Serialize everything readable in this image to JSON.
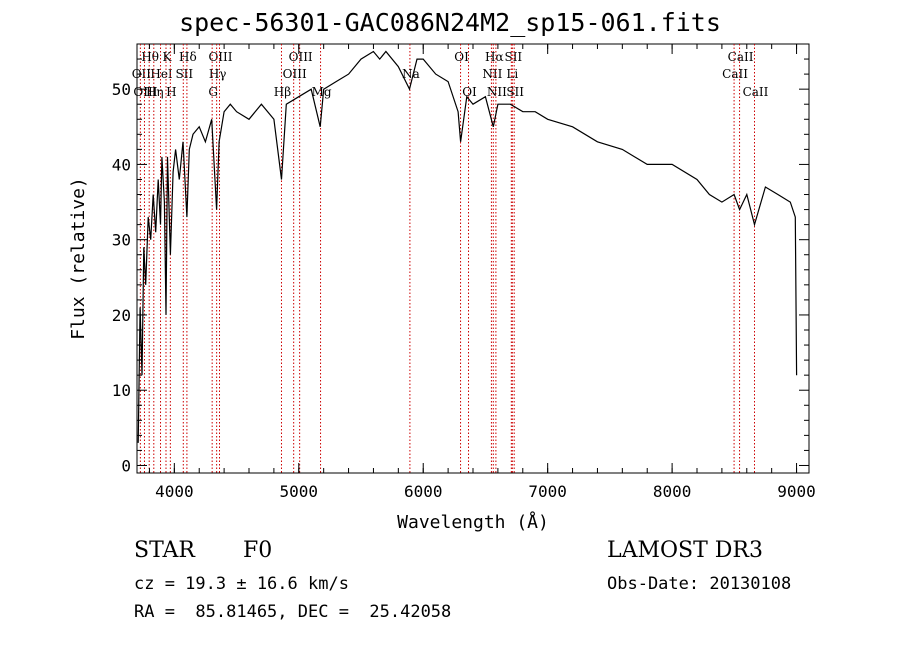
{
  "chart_data": {
    "type": "line",
    "title": "spec-56301-GAC086N24M2_sp15-061.fits",
    "xlabel": "Wavelength (Å)",
    "ylabel": "Flux (relative)",
    "xlim": [
      3700,
      9100
    ],
    "ylim": [
      -1,
      56
    ],
    "xticks": [
      4000,
      5000,
      6000,
      7000,
      8000,
      9000
    ],
    "yticks": [
      0,
      10,
      20,
      30,
      40,
      50
    ],
    "series": [
      {
        "name": "spectrum",
        "x": [
          3710,
          3725,
          3740,
          3755,
          3770,
          3790,
          3810,
          3830,
          3850,
          3870,
          3889,
          3900,
          3920,
          3933,
          3945,
          3968,
          3990,
          4010,
          4040,
          4070,
          4101,
          4120,
          4150,
          4200,
          4250,
          4300,
          4340,
          4360,
          4400,
          4450,
          4500,
          4600,
          4700,
          4800,
          4861,
          4900,
          5000,
          5100,
          5172,
          5200,
          5300,
          5400,
          5500,
          5600,
          5650,
          5700,
          5800,
          5890,
          5950,
          6000,
          6100,
          6200,
          6280,
          6300,
          6350,
          6400,
          6500,
          6563,
          6600,
          6700,
          6800,
          6900,
          7000,
          7200,
          7400,
          7600,
          7800,
          8000,
          8200,
          8300,
          8400,
          8498,
          8542,
          8600,
          8662,
          8750,
          8850,
          8950,
          8990,
          9000
        ],
        "values": [
          3,
          21,
          12,
          29,
          24,
          33,
          30,
          36,
          31,
          38,
          32,
          41,
          35,
          20,
          41,
          28,
          39,
          42,
          38,
          43,
          33,
          42,
          44,
          45,
          43,
          46,
          34,
          43,
          47,
          48,
          47,
          46,
          48,
          46,
          38,
          48,
          49,
          50,
          45,
          50,
          51,
          52,
          54,
          55,
          54,
          55,
          53,
          50,
          54,
          54,
          52,
          51,
          47,
          43,
          49,
          48,
          49,
          45,
          48,
          48,
          47,
          47,
          46,
          45,
          43,
          42,
          40,
          40,
          38,
          36,
          35,
          36,
          34,
          36,
          32,
          37,
          36,
          35,
          33,
          12
        ]
      }
    ],
    "lines": [
      {
        "label": "Hθ",
        "wave": 3798,
        "row": 1
      },
      {
        "label": "OII",
        "wave": 3727,
        "row": 2
      },
      {
        "label": "OIII",
        "wave": 3760,
        "row": 3
      },
      {
        "label": "K",
        "wave": 3933,
        "row": 1
      },
      {
        "label": "HeI",
        "wave": 3889,
        "row": 2
      },
      {
        "label": "Hη",
        "wave": 3835,
        "row": 3
      },
      {
        "label": "SII",
        "wave": 4072,
        "row": 2
      },
      {
        "label": "H",
        "wave": 3968,
        "row": 3
      },
      {
        "label": "Hδ",
        "wave": 4101,
        "row": 1
      },
      {
        "label": "OIII",
        "wave": 4363,
        "row": 1
      },
      {
        "label": "Hγ",
        "wave": 4340,
        "row": 2
      },
      {
        "label": "G",
        "wave": 4304,
        "row": 3
      },
      {
        "label": "OIII",
        "wave": 5007,
        "row": 1
      },
      {
        "label": "OIII",
        "wave": 4959,
        "row": 2
      },
      {
        "label": "Hβ",
        "wave": 4861,
        "row": 3
      },
      {
        "label": "Mg",
        "wave": 5175,
        "row": 3
      },
      {
        "label": "Na",
        "wave": 5893,
        "row": 2
      },
      {
        "label": "OI",
        "wave": 6300,
        "row": 1
      },
      {
        "label": "OI",
        "wave": 6364,
        "row": 3
      },
      {
        "label": "Hα",
        "wave": 6563,
        "row": 1
      },
      {
        "label": "SII",
        "wave": 6716,
        "row": 1
      },
      {
        "label": "NII",
        "wave": 6548,
        "row": 2
      },
      {
        "label": "Li",
        "wave": 6708,
        "row": 2
      },
      {
        "label": "NII",
        "wave": 6584,
        "row": 3
      },
      {
        "label": "SII",
        "wave": 6731,
        "row": 3
      },
      {
        "label": "CaII",
        "wave": 8542,
        "row": 1
      },
      {
        "label": "CaII",
        "wave": 8498,
        "row": 2
      },
      {
        "label": "CaII",
        "wave": 8662,
        "row": 3
      }
    ]
  },
  "info": {
    "obj_type": "STAR",
    "subclass": "F0",
    "survey": "LAMOST DR3",
    "cz": "cz = 19.3 ± 16.6 km/s",
    "obs_date": "Obs-Date: 20130108",
    "radec": "RA =  85.81465, DEC =  25.42058"
  },
  "colors": {
    "line_marker": "#cc0000",
    "spectrum": "#000000",
    "axes": "#000000"
  }
}
